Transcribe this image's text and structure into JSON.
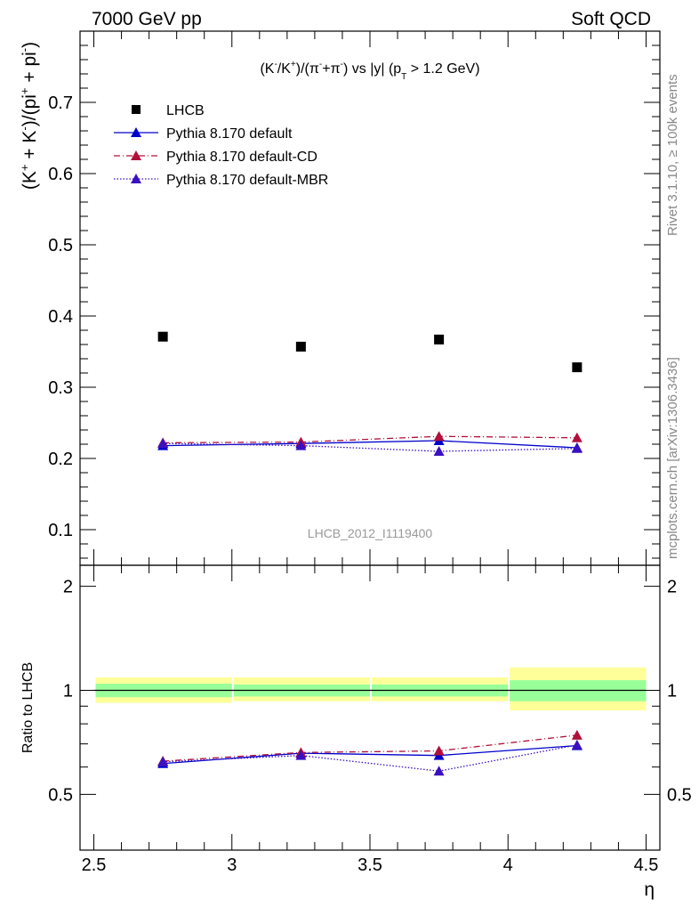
{
  "header": {
    "energy_label": "7000 GeV pp",
    "process_label": "Soft QCD"
  },
  "side_text": {
    "rivet": "Rivet 3.1.10, ≥ 100k events",
    "mcplots": "mcplots.cern.ch [arXiv:1306.3436]"
  },
  "chart_data": [
    {
      "type": "scatter",
      "panel": "main",
      "title": "(K⁻/K⁺)/(π⁻+π⁻) vs |y| (p_T > 1.2 GeV)",
      "analysis_label": "LHCB_2012_I1119400",
      "ylabel": "(K⁺ + K⁻)/(pi⁺ + pi⁻)",
      "ylim": [
        0.05,
        0.8
      ],
      "y_ticks": [
        "0.1",
        "0.2",
        "0.3",
        "0.4",
        "0.5",
        "0.6",
        "0.7"
      ],
      "x": [
        2.75,
        3.25,
        3.75,
        4.25
      ],
      "xlim": [
        2.45,
        4.55
      ],
      "legend_position": "top-left",
      "series": [
        {
          "name": "LHCB",
          "marker": "square",
          "color": "#000000",
          "values": [
            0.371,
            0.357,
            0.367,
            0.328
          ]
        },
        {
          "name": "Pythia 8.170 default",
          "marker": "triangle",
          "line": "solid",
          "color": "#0000cc",
          "values": [
            0.218,
            0.221,
            0.225,
            0.215
          ]
        },
        {
          "name": "Pythia 8.170 default-CD",
          "marker": "triangle",
          "line": "dashdot",
          "color": "#b0103a",
          "values": [
            0.222,
            0.223,
            0.231,
            0.229
          ]
        },
        {
          "name": "Pythia 8.170 default-MBR",
          "marker": "triangle",
          "line": "dotted",
          "color": "#3a10c0",
          "values": [
            0.221,
            0.218,
            0.21,
            0.214
          ]
        }
      ]
    },
    {
      "type": "scatter",
      "panel": "ratio",
      "ylabel": "Ratio to LHCB",
      "xlabel": "η",
      "ylim": [
        0.345,
        2.3
      ],
      "y_ticks": [
        "0.5",
        "1",
        "2"
      ],
      "y_tick_values": [
        0.5,
        1,
        2
      ],
      "x_ticks": [
        "2.5",
        "3",
        "3.5",
        "4",
        "4.5"
      ],
      "x_tick_values": [
        2.5,
        3,
        3.5,
        4,
        4.5
      ],
      "x": [
        2.75,
        3.25,
        3.75,
        4.25
      ],
      "bins": [
        [
          2.5,
          3.0
        ],
        [
          3.0,
          3.5
        ],
        [
          3.5,
          4.0
        ],
        [
          4.0,
          4.5
        ]
      ],
      "band_inner": [
        [
          0.955,
          1.045
        ],
        [
          0.96,
          1.04
        ],
        [
          0.96,
          1.04
        ],
        [
          0.93,
          1.07
        ]
      ],
      "band_outer": [
        [
          0.92,
          1.09
        ],
        [
          0.93,
          1.09
        ],
        [
          0.93,
          1.09
        ],
        [
          0.875,
          1.165
        ]
      ],
      "band_inner_color": "#99ff99",
      "band_outer_color": "#ffff99",
      "series": [
        {
          "name": "Pythia 8.170 default",
          "line": "solid",
          "color": "#0000cc",
          "values": [
            0.614,
            0.658,
            0.648,
            0.692
          ]
        },
        {
          "name": "Pythia 8.170 default-CD",
          "line": "dashdot",
          "color": "#b0103a",
          "values": [
            0.624,
            0.661,
            0.668,
            0.742
          ]
        },
        {
          "name": "Pythia 8.170 default-MBR",
          "line": "dotted",
          "color": "#3a10c0",
          "values": [
            0.621,
            0.648,
            0.584,
            0.695
          ]
        }
      ]
    }
  ]
}
